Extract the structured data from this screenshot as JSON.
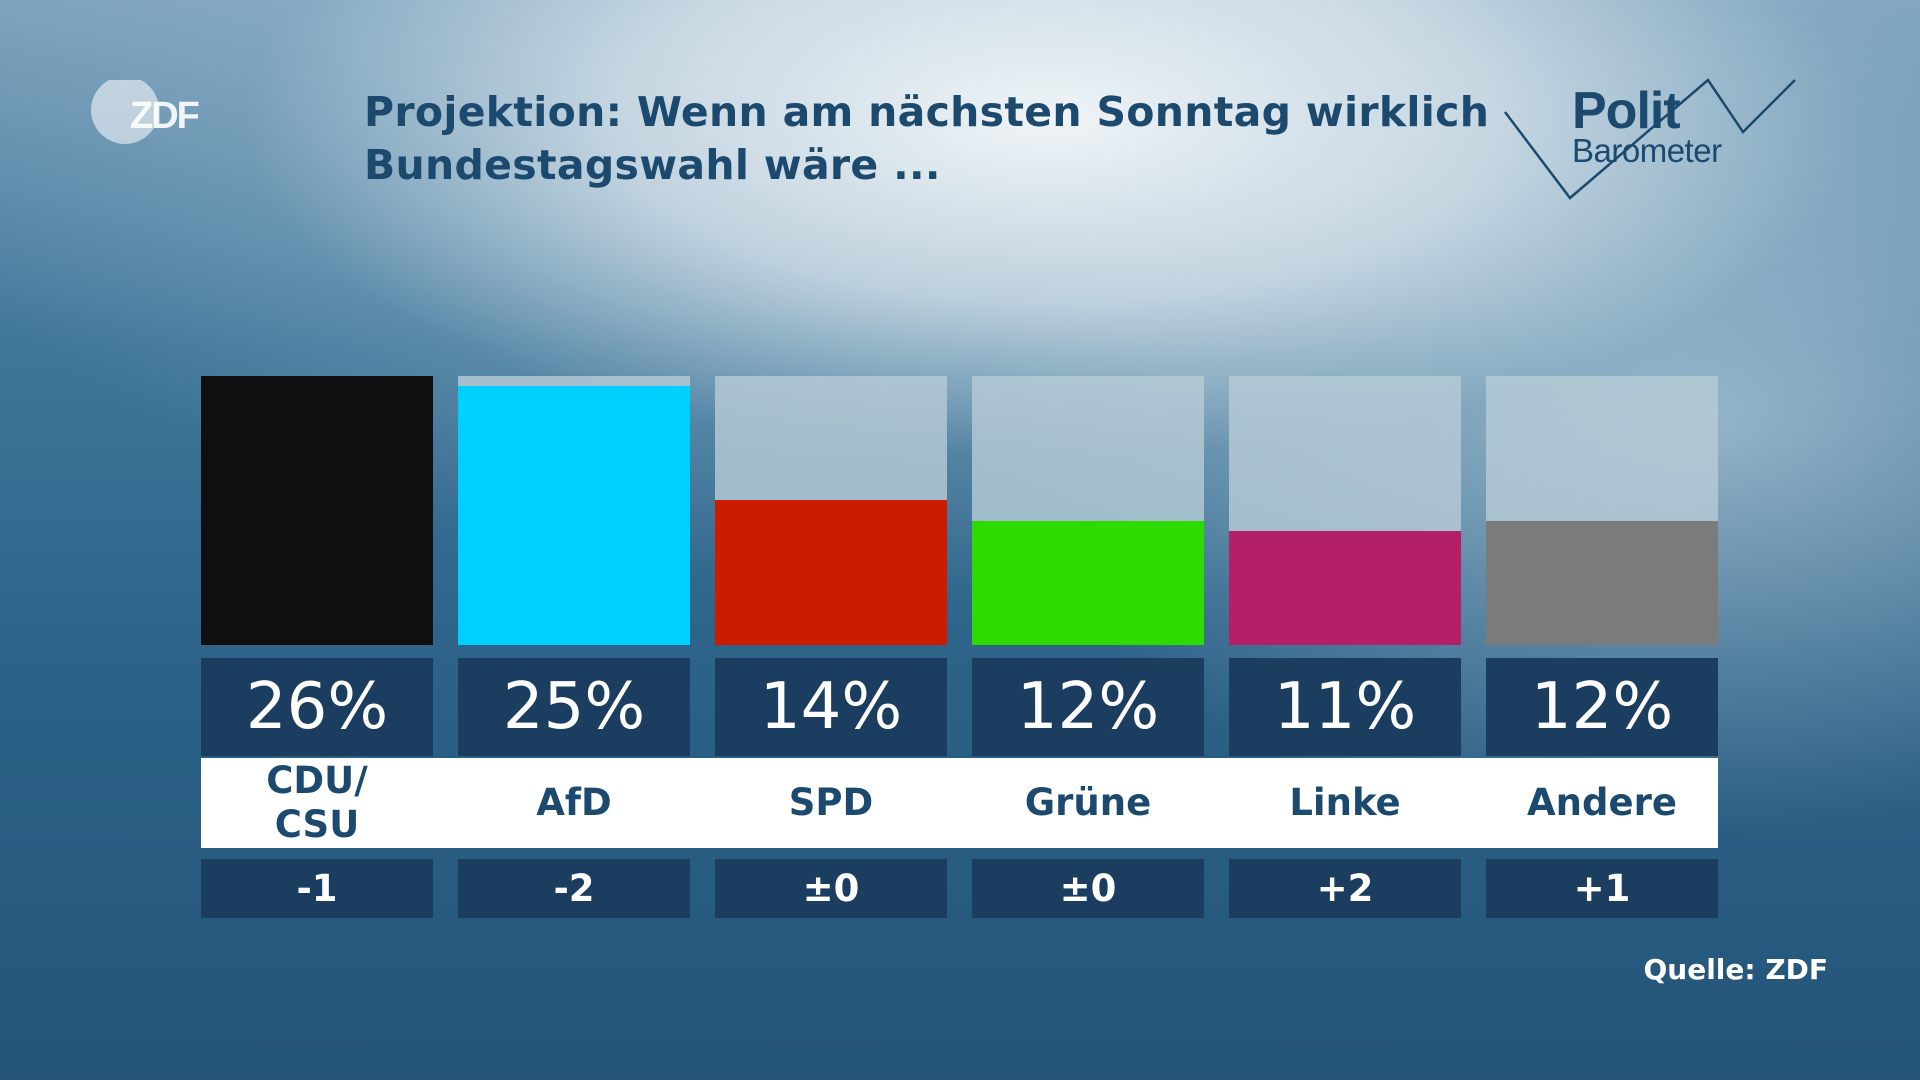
{
  "logo": {
    "text": "ZDF"
  },
  "title": {
    "line1": "Projektion: Wenn am nächsten Sonntag wirklich",
    "line2": "Bundestagswahl wäre ..."
  },
  "brand": {
    "line1": "Polit",
    "line2": "Barometer"
  },
  "source": "Quelle: ZDF",
  "chart_data": {
    "type": "bar",
    "title": "Projektion: Wenn am nächsten Sonntag wirklich Bundestagswahl wäre ...",
    "categories": [
      "CDU/ CSU",
      "AfD",
      "SPD",
      "Grüne",
      "Linke",
      "Andere"
    ],
    "values": [
      26,
      25,
      14,
      12,
      11,
      12
    ],
    "value_labels": [
      "26%",
      "25%",
      "14%",
      "12%",
      "11%",
      "12%"
    ],
    "changes": [
      "-1",
      "-2",
      "±0",
      "±0",
      "+2",
      "+1"
    ],
    "colors": [
      "#0f0f0f",
      "#00d0ff",
      "#cc1c00",
      "#2ddb00",
      "#b32067",
      "#7b7b7b"
    ],
    "ylim": [
      0,
      26
    ],
    "grid": false,
    "legend": "none"
  },
  "parties": [
    {
      "name_line1": "CDU/",
      "name_line2": "CSU",
      "pct": "26%",
      "change": "-1"
    },
    {
      "name_line1": "AfD",
      "name_line2": "",
      "pct": "25%",
      "change": "-2"
    },
    {
      "name_line1": "SPD",
      "name_line2": "",
      "pct": "14%",
      "change": "±0"
    },
    {
      "name_line1": "Grüne",
      "name_line2": "",
      "pct": "12%",
      "change": "±0"
    },
    {
      "name_line1": "Linke",
      "name_line2": "",
      "pct": "11%",
      "change": "+2"
    },
    {
      "name_line1": "Andere",
      "name_line2": "",
      "pct": "12%",
      "change": "+1"
    }
  ]
}
